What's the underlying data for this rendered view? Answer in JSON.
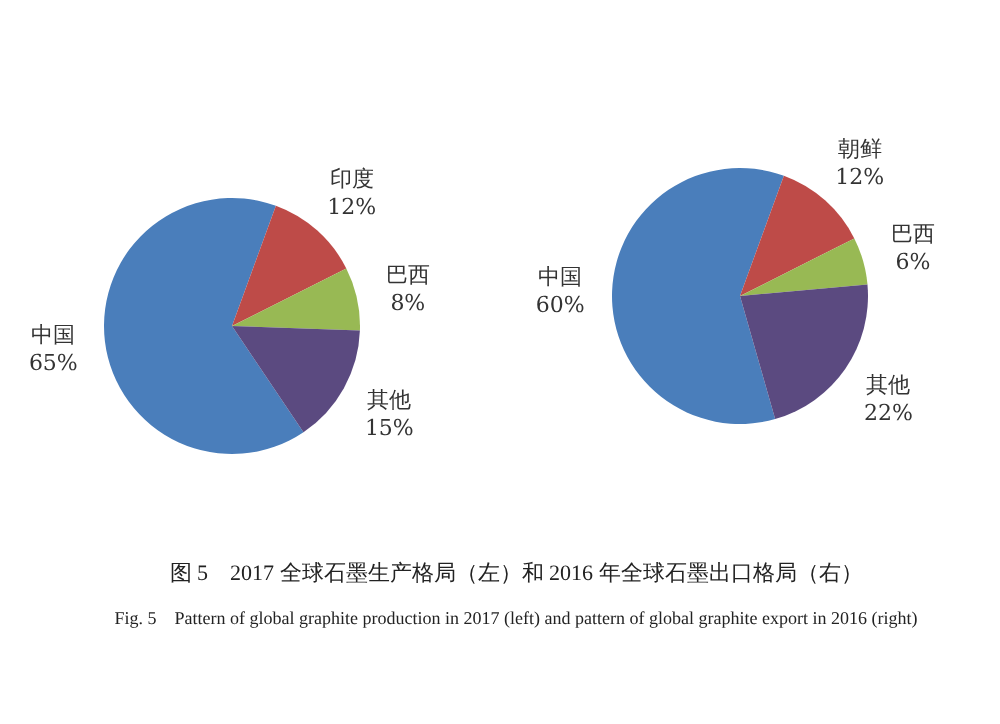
{
  "chart_data": [
    {
      "type": "pie",
      "categories": [
        "中国",
        "印度",
        "巴西",
        "其他"
      ],
      "values": [
        65,
        12,
        8,
        15
      ],
      "value_labels": [
        "65%",
        "12%",
        "8%",
        "15%"
      ],
      "colors": [
        "#4a7ebb",
        "#be4b48",
        "#98b954",
        "#5b4a80"
      ],
      "annotations": [
        "图 5　2017 全球石墨生产格局（左）和 2016 年全球石墨出口格局（右）",
        "Fig. 5　Pattern of global graphite production in 2017 (left) and pattern of global graphite export in 2016 (right)"
      ]
    },
    {
      "type": "pie",
      "categories": [
        "中国",
        "朝鲜",
        "巴西",
        "其他"
      ],
      "values": [
        60,
        12,
        6,
        22
      ],
      "value_labels": [
        "60%",
        "12%",
        "6%",
        "22%"
      ],
      "colors": [
        "#4a7ebb",
        "#be4b48",
        "#98b954",
        "#5b4a80"
      ]
    }
  ]
}
